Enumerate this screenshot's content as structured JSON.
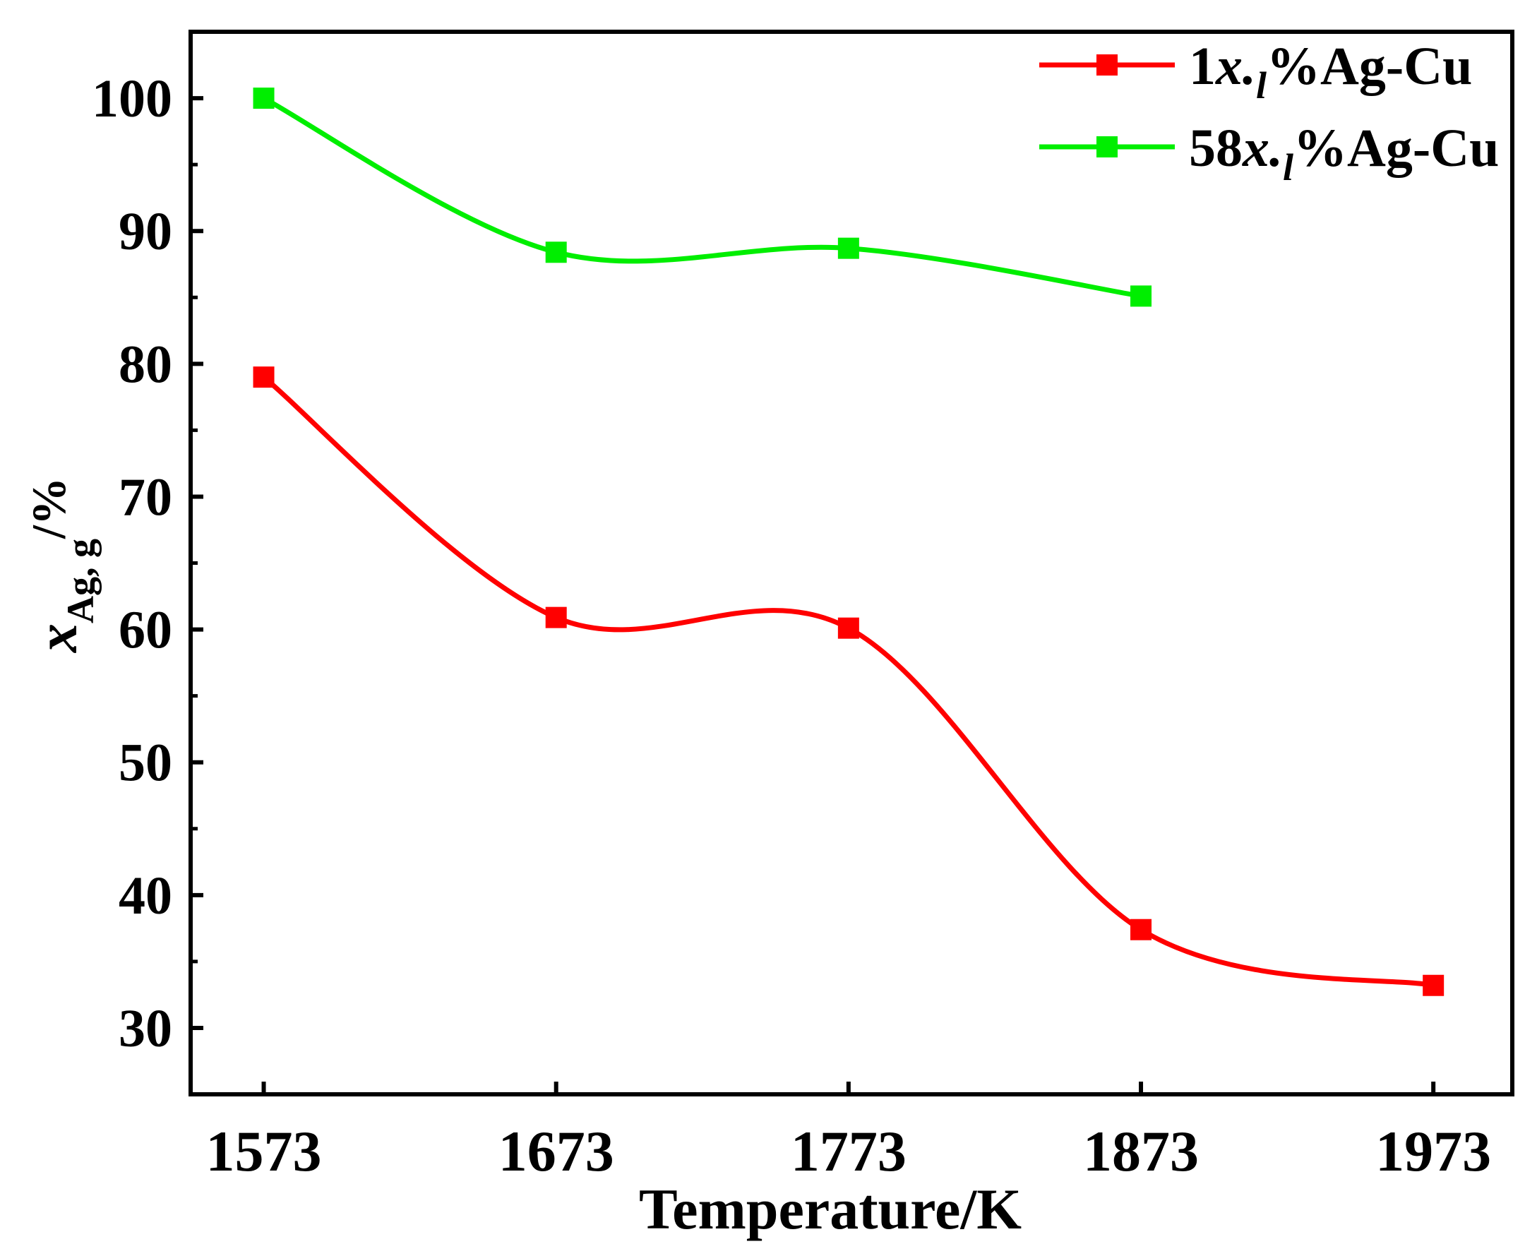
{
  "chart_data": {
    "type": "line",
    "title": "",
    "xlabel": "Temperature/K",
    "ylabel": {
      "main": "x",
      "subscript": "Ag, g",
      "suffix": "/%"
    },
    "x": [
      1573,
      1673,
      1773,
      1873,
      1973
    ],
    "x_tick_labels": [
      "1573",
      "1673",
      "1773",
      "1873",
      "1973"
    ],
    "xlim": [
      1548,
      2000
    ],
    "ylim": [
      25,
      105
    ],
    "y_ticks": [
      30,
      40,
      50,
      60,
      70,
      80,
      90,
      100
    ],
    "y_tick_labels": [
      "30",
      "40",
      "50",
      "60",
      "70",
      "80",
      "90",
      "100"
    ],
    "y_minor_ticks": [
      35,
      45,
      55,
      65,
      75,
      85,
      95
    ],
    "grid": false,
    "legend_position": "top-right",
    "series": [
      {
        "name": "1x.l%Ag-Cu",
        "legend": {
          "prefix": "1",
          "italic": "x.",
          "subscript": "l",
          "suffix": "%Ag-Cu"
        },
        "color": "#ff0000",
        "values": [
          79.0,
          60.9,
          60.1,
          37.4,
          33.2
        ]
      },
      {
        "name": "58x.l%Ag-Cu",
        "legend": {
          "prefix": "58",
          "italic": "x.",
          "subscript": "l",
          "suffix": "%Ag-Cu"
        },
        "color": "#00ee00",
        "values": [
          100.0,
          88.4,
          88.7,
          85.1,
          null
        ]
      }
    ]
  }
}
